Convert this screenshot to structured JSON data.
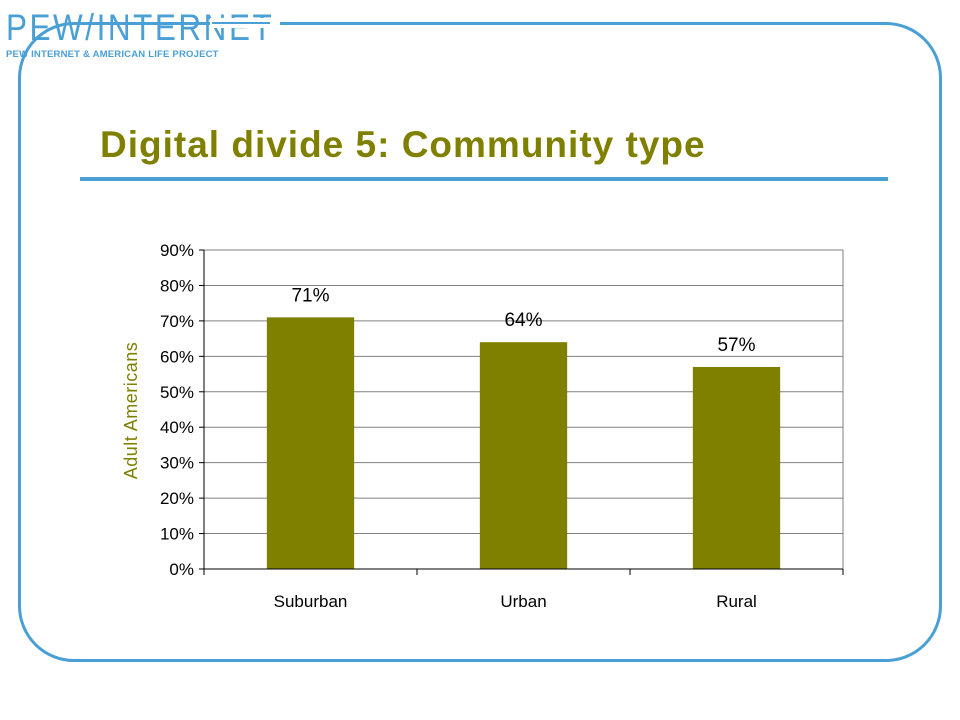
{
  "logo": {
    "main": "PEW/INTERNET",
    "sub": "PEW INTERNET & AMERICAN LIFE PROJECT"
  },
  "title": "Digital divide 5: Community type",
  "colors": {
    "accent": "#4a9fd4",
    "bar": "#808000",
    "title": "#808000"
  },
  "chart_data": {
    "type": "bar",
    "categories": [
      "Suburban",
      "Urban",
      "Rural"
    ],
    "values": [
      71,
      64,
      57
    ],
    "data_labels": [
      "71%",
      "64%",
      "57%"
    ],
    "ylabel": "Adult Americans",
    "xlabel": "",
    "ylim": [
      0,
      90
    ],
    "yticks": [
      0,
      10,
      20,
      30,
      40,
      50,
      60,
      70,
      80,
      90
    ],
    "ytick_labels": [
      "0%",
      "10%",
      "20%",
      "30%",
      "40%",
      "50%",
      "60%",
      "70%",
      "80%",
      "90%"
    ],
    "grid": true,
    "legend": false
  }
}
